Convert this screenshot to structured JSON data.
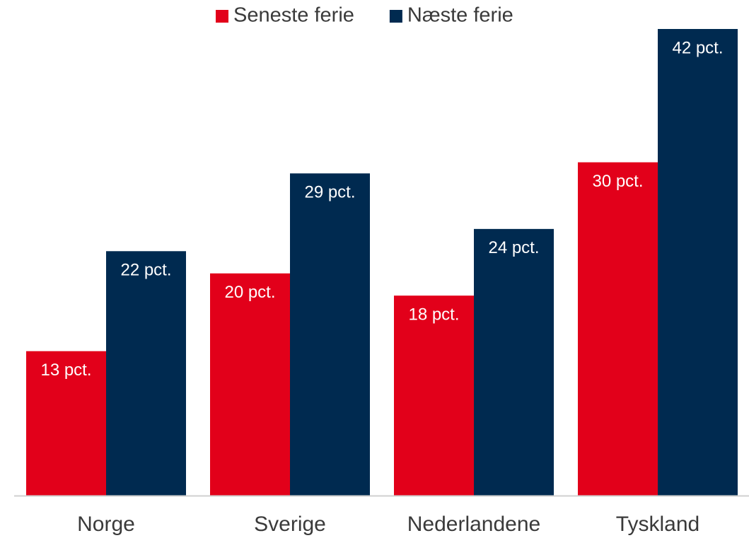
{
  "chart_data": {
    "type": "bar",
    "categories": [
      "Norge",
      "Sverige",
      "Nederlandene",
      "Tyskland"
    ],
    "series": [
      {
        "name": "Seneste ferie",
        "color": "#e2001a",
        "values": [
          13,
          20,
          18,
          30
        ],
        "value_labels": [
          "13 pct.",
          "20 pct.",
          "18 pct.",
          "30 pct."
        ]
      },
      {
        "name": "Næste ferie",
        "color": "#002a50",
        "values": [
          22,
          29,
          24,
          42
        ],
        "value_labels": [
          "22 pct.",
          "29 pct.",
          "24 pct.",
          "42 pct."
        ]
      }
    ],
    "ylim": [
      0,
      42
    ],
    "legend": "top"
  }
}
